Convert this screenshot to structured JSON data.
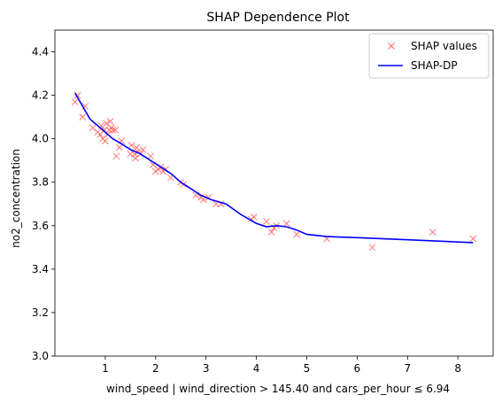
{
  "chart_data": {
    "type": "scatter",
    "title": "SHAP Dependence Plot",
    "xlabel": "wind_speed | wind_direction > 145.40 and cars_per_hour ≤ 6.94",
    "ylabel": "no2_concentration",
    "xlim": [
      0.0,
      8.7
    ],
    "ylim": [
      3.0,
      4.5
    ],
    "xticks": [
      1,
      2,
      3,
      4,
      5,
      6,
      7,
      8
    ],
    "yticks": [
      3.0,
      3.2,
      3.4,
      3.6,
      3.8,
      4.0,
      4.2,
      4.4
    ],
    "grid": false,
    "legend_position": "top-right",
    "series": [
      {
        "name": "SHAP values",
        "style": "markers",
        "marker": "x",
        "color": "#ff6060",
        "x": [
          0.4,
          0.45,
          0.55,
          0.6,
          0.75,
          0.85,
          0.9,
          0.92,
          0.95,
          0.98,
          1.0,
          1.02,
          1.05,
          1.08,
          1.1,
          1.12,
          1.15,
          1.2,
          1.22,
          1.28,
          1.32,
          1.5,
          1.52,
          1.58,
          1.6,
          1.62,
          1.65,
          1.7,
          1.75,
          1.9,
          1.95,
          2.0,
          2.05,
          2.1,
          2.15,
          2.2,
          2.3,
          2.5,
          2.55,
          2.8,
          2.9,
          2.95,
          3.05,
          3.2,
          3.3,
          3.9,
          3.95,
          4.2,
          4.3,
          4.35,
          4.4,
          4.6,
          4.8,
          5.4,
          6.3,
          7.5,
          8.3
        ],
        "y": [
          4.17,
          4.2,
          4.1,
          4.15,
          4.05,
          4.03,
          4.02,
          4.06,
          4.0,
          4.04,
          3.99,
          4.07,
          4.02,
          4.04,
          4.08,
          4.05,
          4.04,
          4.04,
          3.92,
          3.96,
          3.99,
          3.93,
          3.97,
          3.93,
          3.91,
          3.96,
          3.94,
          3.93,
          3.95,
          3.92,
          3.88,
          3.85,
          3.86,
          3.87,
          3.85,
          3.86,
          3.82,
          3.8,
          3.79,
          3.74,
          3.73,
          3.72,
          3.73,
          3.7,
          3.7,
          3.63,
          3.64,
          3.62,
          3.57,
          3.59,
          3.6,
          3.61,
          3.56,
          3.54,
          3.5,
          3.57,
          3.54
        ]
      },
      {
        "name": "SHAP-DP",
        "style": "line",
        "color": "#0000ff",
        "x": [
          0.4,
          0.55,
          0.7,
          0.85,
          1.0,
          1.15,
          1.3,
          1.5,
          1.7,
          1.9,
          2.1,
          2.3,
          2.5,
          2.7,
          2.9,
          3.1,
          3.4,
          3.7,
          4.0,
          4.2,
          4.4,
          4.6,
          4.8,
          5.0,
          5.4,
          6.0,
          7.0,
          8.3
        ],
        "y": [
          4.21,
          4.15,
          4.09,
          4.06,
          4.03,
          4.0,
          3.98,
          3.95,
          3.93,
          3.9,
          3.87,
          3.84,
          3.8,
          3.77,
          3.74,
          3.72,
          3.7,
          3.65,
          3.61,
          3.595,
          3.6,
          3.595,
          3.58,
          3.56,
          3.55,
          3.545,
          3.535,
          3.522
        ]
      }
    ]
  }
}
